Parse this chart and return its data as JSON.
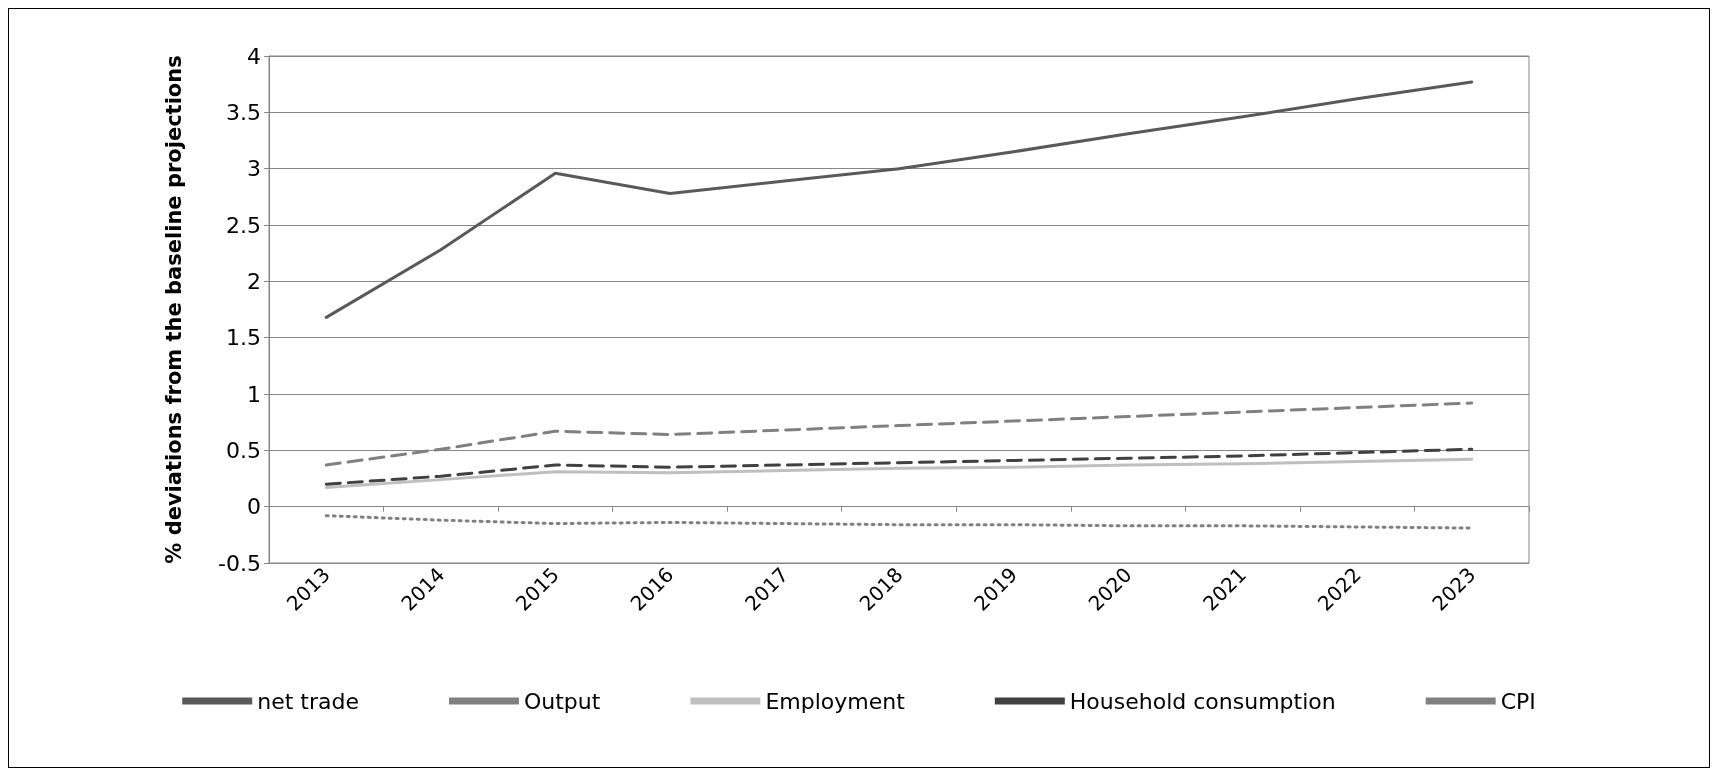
{
  "chart_data": {
    "type": "line",
    "ylabel": "% deviations from the baseline projections",
    "categories": [
      "2013",
      "2014",
      "2015",
      "2016",
      "2017",
      "2018",
      "2019",
      "2020",
      "2021",
      "2022",
      "2023"
    ],
    "ylim": [
      -0.5,
      4
    ],
    "yticks": [
      -0.5,
      0,
      0.5,
      1,
      1.5,
      2,
      2.5,
      3,
      3.5,
      4
    ],
    "grid": "y",
    "legend": "bottom",
    "marker": "none",
    "series": [
      {
        "name": "net trade",
        "color": "#595959",
        "line_style": "solid",
        "values": [
          1.68,
          2.28,
          2.96,
          2.78,
          2.89,
          3.0,
          3.15,
          3.31,
          3.46,
          3.62,
          3.77
        ]
      },
      {
        "name": "Output",
        "color": "#808080",
        "line_style": "dashed",
        "values": [
          0.37,
          0.51,
          0.67,
          0.64,
          0.68,
          0.72,
          0.76,
          0.8,
          0.84,
          0.88,
          0.92
        ]
      },
      {
        "name": "Employment",
        "color": "#bfbfbf",
        "line_style": "solid",
        "values": [
          0.17,
          0.24,
          0.31,
          0.3,
          0.32,
          0.34,
          0.35,
          0.37,
          0.38,
          0.4,
          0.42
        ]
      },
      {
        "name": "Household consumption",
        "color": "#404040",
        "line_style": "dashed",
        "values": [
          0.2,
          0.27,
          0.37,
          0.35,
          0.37,
          0.39,
          0.41,
          0.43,
          0.45,
          0.48,
          0.51
        ]
      },
      {
        "name": "CPI",
        "color": "#808080",
        "line_style": "dotted",
        "values": [
          -0.08,
          -0.12,
          -0.15,
          -0.14,
          -0.15,
          -0.16,
          -0.16,
          -0.17,
          -0.17,
          -0.18,
          -0.19
        ]
      }
    ]
  }
}
